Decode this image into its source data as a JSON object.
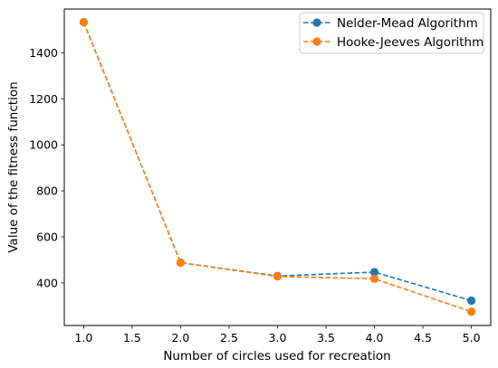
{
  "chart_data": {
    "type": "line",
    "xlabel": "Number of circles used for recreation",
    "ylabel": "Value of the fitness function",
    "xlim": [
      0.8,
      5.2
    ],
    "ylim": [
      215,
      1590
    ],
    "xticks": [
      1.0,
      1.5,
      2.0,
      2.5,
      3.0,
      3.5,
      4.0,
      4.5,
      5.0
    ],
    "xtick_labels": [
      "1.0",
      "1.5",
      "2.0",
      "2.5",
      "3.0",
      "3.5",
      "4.0",
      "4.5",
      "5.0"
    ],
    "yticks": [
      400,
      600,
      800,
      1000,
      1200,
      1400
    ],
    "ytick_labels": [
      "400",
      "600",
      "800",
      "1000",
      "1200",
      "1400"
    ],
    "grid": false,
    "legend_position": "top-right",
    "series": [
      {
        "name": "Nelder-Mead Algorithm",
        "color": "#1f77b4",
        "line_style": "dashed",
        "marker": "circle",
        "x": [
          1.0,
          2.0,
          3.0,
          4.0,
          5.0
        ],
        "y": [
          1533,
          488,
          430,
          447,
          323
        ]
      },
      {
        "name": "Hooke-Jeeves Algorithm",
        "color": "#ff7f0e",
        "line_style": "dashed",
        "marker": "circle",
        "x": [
          1.0,
          2.0,
          3.0,
          4.0,
          5.0
        ],
        "y": [
          1533,
          488,
          428,
          418,
          275
        ]
      }
    ]
  }
}
